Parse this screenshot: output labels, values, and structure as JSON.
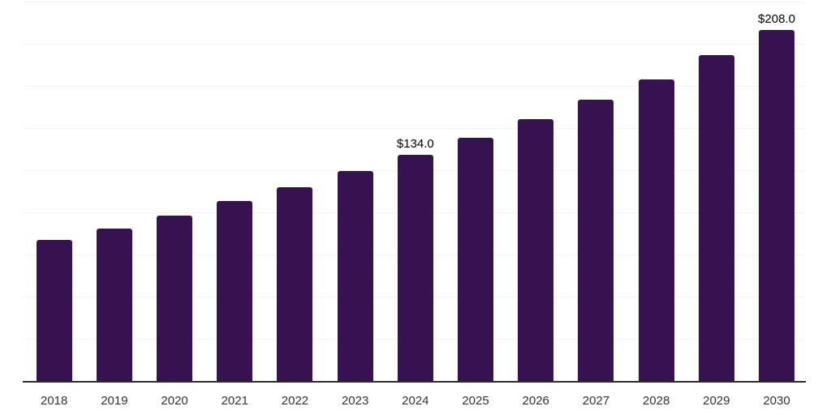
{
  "chart_data": {
    "type": "bar",
    "title": "",
    "xlabel": "",
    "ylabel": "",
    "categories": [
      "2018",
      "2019",
      "2020",
      "2021",
      "2022",
      "2023",
      "2024",
      "2025",
      "2026",
      "2027",
      "2028",
      "2029",
      "2030"
    ],
    "values": [
      83.5,
      90.6,
      98.1,
      106.5,
      115.0,
      124.6,
      134.0,
      144.2,
      155.3,
      166.7,
      179.0,
      193.4,
      208.0
    ],
    "bar_labels": [
      "",
      "",
      "",
      "",
      "",
      "",
      "$134.0",
      "",
      "",
      "",
      "",
      "",
      "$208.0"
    ],
    "value_prefix": "$",
    "ylim": [
      0,
      225
    ],
    "grid_step": 25,
    "grid": true,
    "legend": false,
    "colors": {
      "bar": "#371250",
      "gridline": "#f2f2f2",
      "axis_line": "#2b2b2b",
      "value_label": "#000000",
      "tick_label": "#333333",
      "background": "#ffffff"
    }
  }
}
